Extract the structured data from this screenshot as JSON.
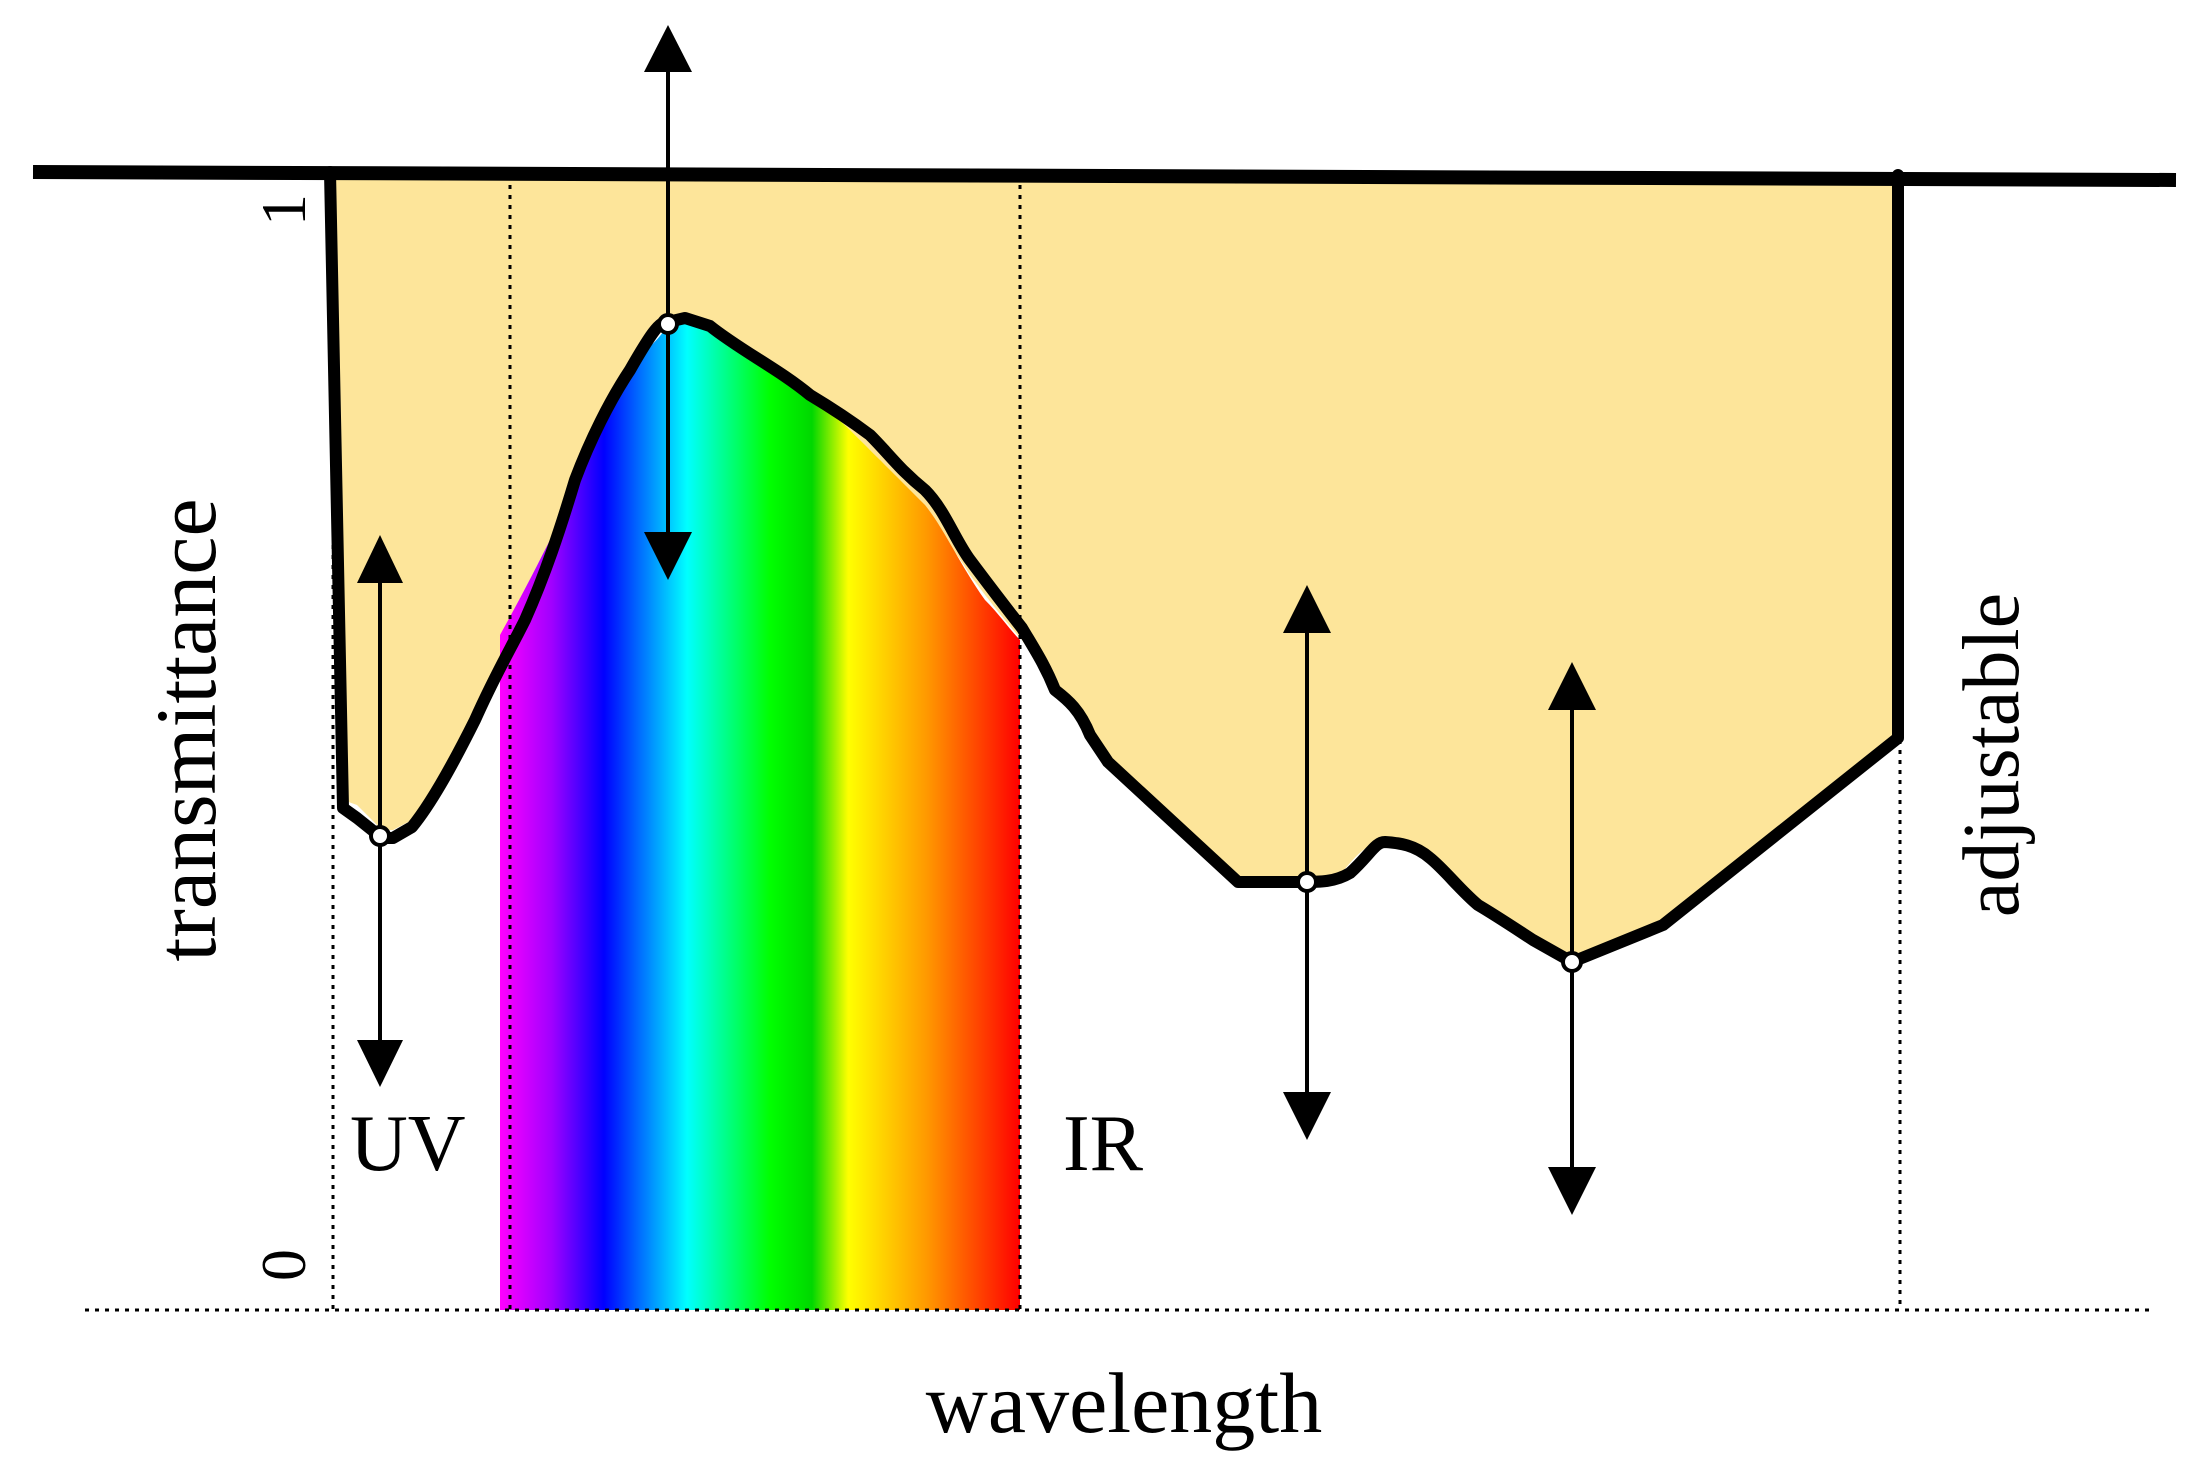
{
  "labels": {
    "y_axis": "transmittance",
    "x_axis": "wavelength",
    "y_tick_top": "1",
    "y_tick_bottom": "0",
    "uv_region": "UV",
    "ir_region": "IR",
    "right_side": "adjustable"
  },
  "colors": {
    "fill": "#fde59a",
    "curve": "#000000",
    "spectrum": [
      "#ff00ff",
      "#7f00ff",
      "#0000ff",
      "#00ffff",
      "#00ff00",
      "#00e000",
      "#ffff00",
      "#ff9900",
      "#ff0000"
    ]
  },
  "icons": {
    "control_point": "control-point-icon",
    "adjust_arrow": "double-headed-arrow-icon"
  }
}
